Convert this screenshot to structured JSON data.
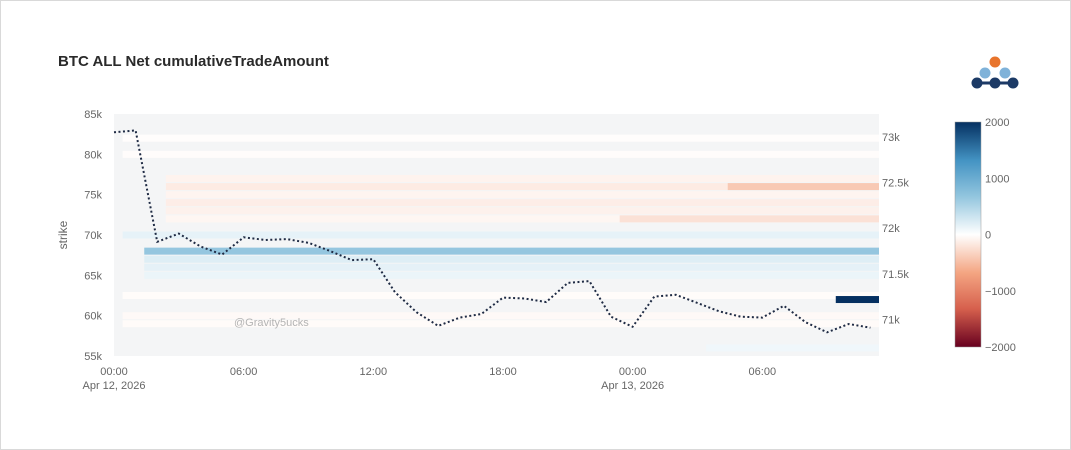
{
  "chart_data": {
    "type": "heatmap",
    "title": "BTC ALL Net cumulativeTradeAmount",
    "ylabel": "strike",
    "y_ticks": [
      "55k",
      "60k",
      "65k",
      "70k",
      "75k",
      "80k",
      "85k"
    ],
    "y2_ticks": [
      "71k",
      "71.5k",
      "72k",
      "72.5k",
      "73k"
    ],
    "x_ticks": [
      {
        "time": "00:00",
        "date": "Apr 12, 2026"
      },
      {
        "time": "06:00",
        "date": ""
      },
      {
        "time": "12:00",
        "date": ""
      },
      {
        "time": "18:00",
        "date": ""
      },
      {
        "time": "00:00",
        "date": "Apr 13, 2026"
      },
      {
        "time": "06:00",
        "date": ""
      }
    ],
    "colorbar": {
      "ticks": [
        "2000",
        "1000",
        "0",
        "−1000",
        "−2000"
      ],
      "range": [
        -2000,
        2000
      ]
    },
    "color_scale": [
      "#67001f",
      "#d6604d",
      "#f4a582",
      "#ffffff",
      "#92c5de",
      "#4393c3",
      "#053061"
    ],
    "strike_range": [
      55000,
      85000
    ],
    "price_range": [
      70600,
      73250
    ],
    "heatmap_bands": [
      {
        "strike": 59000,
        "from": 0.4,
        "to": 35.4,
        "value": -30
      },
      {
        "strike": 60000,
        "from": 0.4,
        "to": 35.4,
        "value": -45
      },
      {
        "strike": 62500,
        "from": 0.4,
        "to": 35.4,
        "value": -25
      },
      {
        "strike": 65000,
        "from": 1.4,
        "to": 35.4,
        "value": 120
      },
      {
        "strike": 66000,
        "from": 1.4,
        "to": 35.4,
        "value": 160
      },
      {
        "strike": 67000,
        "from": 1.4,
        "to": 35.4,
        "value": 200
      },
      {
        "strike": 68000,
        "from": 1.4,
        "to": 35.4,
        "value": 650
      },
      {
        "strike": 70000,
        "from": 0.4,
        "to": 35.4,
        "value": 150
      },
      {
        "strike": 72000,
        "from": 2.4,
        "to": 35.4,
        "value": -70
      },
      {
        "strike": 73000,
        "from": 2.4,
        "to": 35.4,
        "value": -100
      },
      {
        "strike": 74000,
        "from": 2.4,
        "to": 35.4,
        "value": -130
      },
      {
        "strike": 75000,
        "from": 2.4,
        "to": 35.4,
        "value": -80
      },
      {
        "strike": 76000,
        "from": 2.4,
        "to": 35.4,
        "value": -150
      },
      {
        "strike": 77000,
        "from": 2.4,
        "to": 35.4,
        "value": -90
      },
      {
        "strike": 80000,
        "from": 0.4,
        "to": 35.4,
        "value": -20
      },
      {
        "strike": 82000,
        "from": 0.4,
        "to": 35.4,
        "value": -15
      },
      {
        "strike": 76000,
        "from": 28.4,
        "to": 35.4,
        "value": -400
      },
      {
        "strike": 72000,
        "from": 23.4,
        "to": 35.4,
        "value": -220
      },
      {
        "strike": 62000,
        "from": 33.4,
        "to": 35.4,
        "value": 2000
      },
      {
        "strike": 56000,
        "from": 27.4,
        "to": 35.4,
        "value": 90
      }
    ],
    "price_series": {
      "name": "",
      "style": "dotted",
      "color": "#1f2b44",
      "hours": [
        0,
        1,
        2,
        3,
        4,
        5,
        6,
        7,
        8,
        9,
        10,
        11,
        12,
        13,
        14,
        15,
        16,
        17,
        18,
        19,
        20,
        21,
        22,
        23,
        24,
        25,
        26,
        27,
        28,
        29,
        30,
        31,
        32,
        33,
        34,
        35
      ],
      "values": [
        73050,
        73070,
        71850,
        71940,
        71800,
        71710,
        71900,
        71870,
        71880,
        71840,
        71750,
        71650,
        71660,
        71300,
        71080,
        70930,
        71020,
        71060,
        71240,
        71230,
        71190,
        71400,
        71420,
        71030,
        70920,
        71250,
        71270,
        71180,
        71090,
        71030,
        71020,
        71150,
        70970,
        70860,
        70950,
        70910
      ]
    }
  }
}
